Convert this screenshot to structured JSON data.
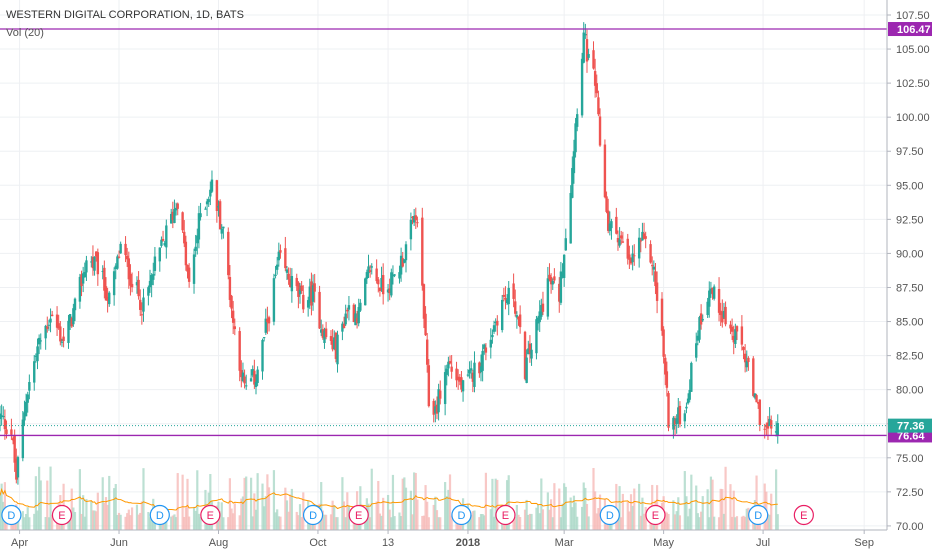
{
  "chart_data": {
    "type": "candlestick",
    "title": "WESTERN DIGITAL CORPORATION, 1D, BATS",
    "indicator_label": "Vol (20)",
    "x_ticks": [
      "Apr",
      "Jun",
      "Aug",
      "Oct",
      "13",
      "2018",
      "Mar",
      "May",
      "Jul",
      "Sep"
    ],
    "x_tick_dates": [
      "2017-04-01",
      "2017-06-01",
      "2017-08-01",
      "2017-10-01",
      "2017-11-13",
      "2018-01-01",
      "2018-03-01",
      "2018-05-01",
      "2018-07-01",
      "2018-09-01"
    ],
    "x_range": [
      "2017-03-20",
      "2018-09-15"
    ],
    "y_ticks": [
      70.0,
      72.5,
      75.0,
      77.5,
      80.0,
      82.5,
      85.0,
      87.5,
      90.0,
      92.5,
      95.0,
      97.5,
      100.0,
      102.5,
      105.0,
      107.5
    ],
    "ylim": [
      69.7,
      108.6
    ],
    "y_axis_position": "right",
    "grid": true,
    "horizontal_lines": [
      {
        "value": 106.47,
        "label": "106.47",
        "color": "#9c27b0"
      },
      {
        "value": 76.64,
        "label": "76.64",
        "color": "#9c27b0"
      }
    ],
    "last_price": {
      "value": 77.36,
      "label": "77.36",
      "color": "#26a69a"
    },
    "up_color": "#26a69a",
    "down_color": "#ef5350",
    "ma_color": "#ff9800",
    "price_path": [
      [
        "2017-03-20",
        78.0
      ],
      [
        "2017-03-27",
        76.9
      ],
      [
        "2017-03-30",
        73.5
      ],
      [
        "2017-04-05",
        79.5
      ],
      [
        "2017-04-12",
        83.0
      ],
      [
        "2017-04-20",
        85.5
      ],
      [
        "2017-04-28",
        83.5
      ],
      [
        "2017-05-05",
        86.0
      ],
      [
        "2017-05-12",
        89.5
      ],
      [
        "2017-05-19",
        89.0
      ],
      [
        "2017-05-26",
        86.5
      ],
      [
        "2017-06-02",
        90.5
      ],
      [
        "2017-06-09",
        88.0
      ],
      [
        "2017-06-16",
        86.0
      ],
      [
        "2017-06-23",
        89.0
      ],
      [
        "2017-06-30",
        91.5
      ],
      [
        "2017-07-07",
        94.0
      ],
      [
        "2017-07-14",
        87.5
      ],
      [
        "2017-07-21",
        93.0
      ],
      [
        "2017-07-28",
        95.0
      ],
      [
        "2017-08-04",
        91.5
      ],
      [
        "2017-08-10",
        85.0
      ],
      [
        "2017-08-17",
        80.0
      ],
      [
        "2017-08-24",
        81.0
      ],
      [
        "2017-08-31",
        85.0
      ],
      [
        "2017-09-07",
        89.5
      ],
      [
        "2017-09-14",
        88.0
      ],
      [
        "2017-09-21",
        86.5
      ],
      [
        "2017-09-28",
        87.0
      ],
      [
        "2017-10-05",
        84.0
      ],
      [
        "2017-10-12",
        83.0
      ],
      [
        "2017-10-19",
        86.0
      ],
      [
        "2017-10-26",
        85.5
      ],
      [
        "2017-11-02",
        89.0
      ],
      [
        "2017-11-09",
        87.5
      ],
      [
        "2017-11-16",
        88.0
      ],
      [
        "2017-11-23",
        90.0
      ],
      [
        "2017-11-30",
        93.0
      ],
      [
        "2017-12-04",
        87.5
      ],
      [
        "2017-12-08",
        79.0
      ],
      [
        "2017-12-12",
        78.5
      ],
      [
        "2017-12-20",
        82.0
      ],
      [
        "2017-12-29",
        80.0
      ],
      [
        "2018-01-08",
        82.0
      ],
      [
        "2018-01-15",
        84.0
      ],
      [
        "2018-01-22",
        86.5
      ],
      [
        "2018-01-29",
        87.0
      ],
      [
        "2018-02-05",
        81.5
      ],
      [
        "2018-02-12",
        84.5
      ],
      [
        "2018-02-19",
        88.0
      ],
      [
        "2018-02-26",
        87.0
      ],
      [
        "2018-03-05",
        95.0
      ],
      [
        "2018-03-09",
        101.0
      ],
      [
        "2018-03-13",
        106.0
      ],
      [
        "2018-03-16",
        104.0
      ],
      [
        "2018-03-20",
        102.5
      ],
      [
        "2018-03-23",
        98.0
      ],
      [
        "2018-03-28",
        92.0
      ],
      [
        "2018-04-03",
        91.5
      ],
      [
        "2018-04-10",
        89.0
      ],
      [
        "2018-04-17",
        91.0
      ],
      [
        "2018-04-24",
        89.5
      ],
      [
        "2018-04-30",
        84.0
      ],
      [
        "2018-05-04",
        78.0
      ],
      [
        "2018-05-08",
        77.5
      ],
      [
        "2018-05-15",
        79.0
      ],
      [
        "2018-05-22",
        84.5
      ],
      [
        "2018-05-29",
        87.5
      ],
      [
        "2018-06-05",
        86.0
      ],
      [
        "2018-06-12",
        84.0
      ],
      [
        "2018-06-19",
        83.0
      ],
      [
        "2018-06-26",
        79.0
      ],
      [
        "2018-07-03",
        77.0
      ],
      [
        "2018-07-10",
        77.36
      ]
    ],
    "event_markers": [
      {
        "label": "D",
        "date": "2017-03-27",
        "color": "#2196f3"
      },
      {
        "label": "E",
        "date": "2017-04-27",
        "color": "#e91e63"
      },
      {
        "label": "D",
        "date": "2017-06-26",
        "color": "#2196f3"
      },
      {
        "label": "E",
        "date": "2017-07-27",
        "color": "#e91e63"
      },
      {
        "label": "D",
        "date": "2017-09-28",
        "color": "#2196f3"
      },
      {
        "label": "E",
        "date": "2017-10-26",
        "color": "#e91e63"
      },
      {
        "label": "D",
        "date": "2017-12-28",
        "color": "#2196f3"
      },
      {
        "label": "E",
        "date": "2018-01-24",
        "color": "#e91e63"
      },
      {
        "label": "D",
        "date": "2018-03-29",
        "color": "#2196f3"
      },
      {
        "label": "E",
        "date": "2018-04-26",
        "color": "#e91e63"
      },
      {
        "label": "D",
        "date": "2018-06-28",
        "color": "#2196f3"
      },
      {
        "label": "E",
        "date": "2018-07-26",
        "color": "#e91e63"
      }
    ]
  }
}
